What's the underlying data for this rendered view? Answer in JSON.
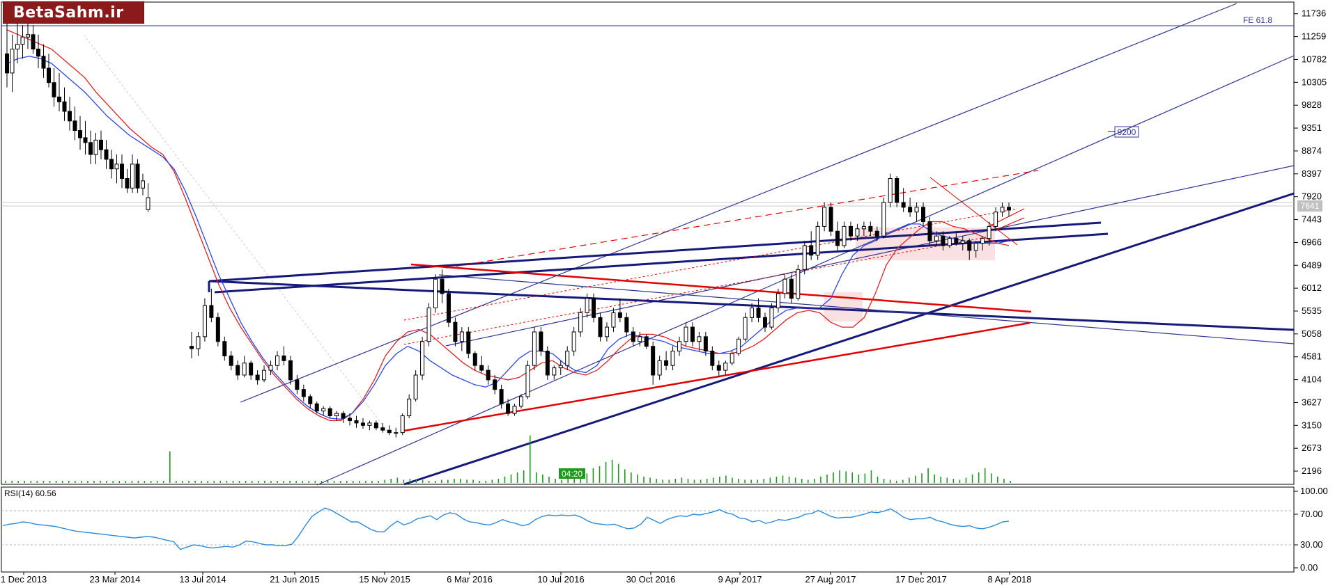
{
  "logo": {
    "text": "BetaSahm.ir"
  },
  "main_panel": {
    "fe_label": "FE 61.8",
    "target_label": "9200",
    "time_label": "04:20",
    "price_tag": "7641",
    "price_ticks": [
      "11736",
      "11259",
      "10782",
      "10305",
      "9828",
      "9351",
      "8874",
      "8397",
      "7920",
      "7443",
      "6966",
      "6489",
      "6012",
      "5535",
      "5058",
      "4581",
      "4104",
      "3627",
      "3150",
      "2673",
      "2196"
    ]
  },
  "rsi_panel": {
    "label": "RSI(14) 60.56",
    "ticks": [
      "100.00",
      "70.00",
      "30.00",
      "0.00"
    ]
  },
  "x_axis": {
    "labels": [
      "1 Dec 2013",
      "23 Mar 2014",
      "13 Jul 2014",
      "21 Jun 2015",
      "15 Nov 2015",
      "6 Mar 2016",
      "10 Jul 2016",
      "30 Oct 2016",
      "9 Apr 2017",
      "27 Aug 2017",
      "17 Dec 2017",
      "8 Apr 2018"
    ]
  },
  "chart_data": {
    "type": "candlestick",
    "title": "",
    "xlabel": "",
    "ylabel": "",
    "ylim": [
      1950,
      11950
    ],
    "price_last": 7641,
    "candles_ohlc": [
      [
        10900,
        11600,
        10200,
        10500
      ],
      [
        10500,
        11300,
        10100,
        11000
      ],
      [
        11000,
        11600,
        10700,
        11100
      ],
      [
        11100,
        11500,
        10800,
        11250
      ],
      [
        11250,
        11600,
        11000,
        11300
      ],
      [
        11300,
        11500,
        10900,
        11000
      ],
      [
        11000,
        11300,
        10600,
        10850
      ],
      [
        10850,
        11100,
        10400,
        10600
      ],
      [
        10600,
        10900,
        10200,
        10300
      ],
      [
        10300,
        10600,
        9800,
        10000
      ],
      [
        10000,
        10500,
        9700,
        9900
      ],
      [
        9900,
        10200,
        9500,
        9700
      ],
      [
        9700,
        10000,
        9300,
        9500
      ],
      [
        9500,
        9800,
        9100,
        9300
      ],
      [
        9300,
        9600,
        8900,
        9150
      ],
      [
        9150,
        9500,
        8800,
        9050
      ],
      [
        9050,
        9300,
        8600,
        8800
      ],
      [
        8800,
        9250,
        8600,
        9100
      ],
      [
        9100,
        9300,
        8700,
        8900
      ],
      [
        8900,
        9100,
        8500,
        8700
      ],
      [
        8700,
        8900,
        8300,
        8500
      ],
      [
        8500,
        8800,
        8200,
        8600
      ],
      [
        8600,
        8800,
        8100,
        8300
      ],
      [
        8300,
        8500,
        8000,
        8100
      ],
      [
        8100,
        8800,
        8000,
        8600
      ],
      [
        8600,
        8700,
        8000,
        8100
      ],
      [
        8100,
        8400,
        7950,
        8250
      ],
      [
        7650,
        8200,
        7600,
        7900
      ],
      [
        4800,
        5100,
        4550,
        4750
      ],
      [
        4750,
        5100,
        4600,
        5000
      ],
      [
        5000,
        5800,
        4900,
        5650
      ],
      [
        5650,
        6000,
        5300,
        5400
      ],
      [
        5400,
        5500,
        4800,
        4900
      ],
      [
        4900,
        5000,
        4500,
        4600
      ],
      [
        4600,
        4700,
        4300,
        4400
      ],
      [
        4400,
        4500,
        4100,
        4200
      ],
      [
        4200,
        4600,
        4150,
        4450
      ],
      [
        4450,
        4500,
        4100,
        4200
      ],
      [
        4200,
        4300,
        4000,
        4100
      ],
      [
        4100,
        4400,
        4050,
        4300
      ],
      [
        4300,
        4500,
        4200,
        4400
      ],
      [
        4400,
        4700,
        4300,
        4600
      ],
      [
        4600,
        4800,
        4400,
        4500
      ],
      [
        4500,
        4600,
        4000,
        4100
      ],
      [
        4100,
        4200,
        3800,
        3900
      ],
      [
        3900,
        4000,
        3650,
        3750
      ],
      [
        3750,
        3800,
        3500,
        3600
      ],
      [
        3600,
        3650,
        3400,
        3450
      ],
      [
        3450,
        3550,
        3350,
        3500
      ],
      [
        3500,
        3550,
        3300,
        3350
      ],
      [
        3350,
        3450,
        3250,
        3400
      ],
      [
        3400,
        3450,
        3200,
        3300
      ],
      [
        3300,
        3400,
        3150,
        3250
      ],
      [
        3250,
        3350,
        3100,
        3200
      ],
      [
        3200,
        3300,
        3080,
        3150
      ],
      [
        3150,
        3250,
        3050,
        3200
      ],
      [
        3200,
        3250,
        3050,
        3100
      ],
      [
        3100,
        3200,
        3000,
        3050
      ],
      [
        3050,
        3150,
        2950,
        3000
      ],
      [
        3000,
        3100,
        2900,
        3000
      ],
      [
        3000,
        3400,
        2950,
        3350
      ],
      [
        3350,
        3800,
        3300,
        3700
      ],
      [
        3700,
        4300,
        3650,
        4200
      ],
      [
        4200,
        5000,
        4100,
        4900
      ],
      [
        4900,
        5700,
        4800,
        5600
      ],
      [
        5600,
        6300,
        5500,
        6200
      ],
      [
        6200,
        6400,
        5700,
        5900
      ],
      [
        5900,
        6000,
        5200,
        5300
      ],
      [
        5300,
        5400,
        4800,
        4900
      ],
      [
        4900,
        5200,
        4700,
        5100
      ],
      [
        5100,
        5200,
        4550,
        4650
      ],
      [
        4650,
        4700,
        4300,
        4400
      ],
      [
        4400,
        4600,
        4250,
        4300
      ],
      [
        4300,
        4400,
        4000,
        4100
      ],
      [
        4100,
        4200,
        3800,
        3900
      ],
      [
        3900,
        4000,
        3500,
        3600
      ],
      [
        3600,
        3700,
        3350,
        3400
      ],
      [
        3400,
        3600,
        3350,
        3550
      ],
      [
        3550,
        3800,
        3500,
        3750
      ],
      [
        3750,
        4500,
        3700,
        4400
      ],
      [
        4400,
        5200,
        4300,
        5100
      ],
      [
        5100,
        5200,
        4600,
        4700
      ],
      [
        4700,
        4800,
        4100,
        4200
      ],
      [
        4200,
        4400,
        4100,
        4350
      ],
      [
        4350,
        4500,
        4200,
        4400
      ],
      [
        4400,
        4800,
        4300,
        4700
      ],
      [
        4700,
        5200,
        4600,
        5100
      ],
      [
        5100,
        5600,
        5000,
        5500
      ],
      [
        5500,
        5900,
        5400,
        5800
      ],
      [
        5800,
        5900,
        5300,
        5400
      ],
      [
        5400,
        5500,
        4900,
        5000
      ],
      [
        5000,
        5300,
        4900,
        5200
      ],
      [
        5200,
        5600,
        5100,
        5500
      ],
      [
        5500,
        5800,
        5300,
        5400
      ],
      [
        5400,
        5500,
        5000,
        5100
      ],
      [
        5100,
        5200,
        4800,
        4900
      ],
      [
        4900,
        5100,
        4800,
        5000
      ],
      [
        5000,
        5050,
        4750,
        4800
      ],
      [
        4800,
        4900,
        4000,
        4200
      ],
      [
        4200,
        4600,
        4100,
        4500
      ],
      [
        4500,
        4700,
        4300,
        4400
      ],
      [
        4400,
        4800,
        4300,
        4700
      ],
      [
        4700,
        5000,
        4600,
        4900
      ],
      [
        4900,
        5300,
        4800,
        5200
      ],
      [
        5200,
        5300,
        4800,
        4900
      ],
      [
        4900,
        5100,
        4700,
        5000
      ],
      [
        5000,
        5100,
        4600,
        4700
      ],
      [
        4700,
        4800,
        4300,
        4400
      ],
      [
        4400,
        4500,
        4150,
        4300
      ],
      [
        4300,
        4500,
        4200,
        4450
      ],
      [
        4450,
        4700,
        4400,
        4650
      ],
      [
        4650,
        5000,
        4600,
        4950
      ],
      [
        4950,
        5500,
        4900,
        5400
      ],
      [
        5400,
        5700,
        5300,
        5600
      ],
      [
        5600,
        5800,
        5300,
        5400
      ],
      [
        5400,
        5500,
        5100,
        5200
      ],
      [
        5200,
        5700,
        5150,
        5600
      ],
      [
        5600,
        6000,
        5500,
        5900
      ],
      [
        5900,
        6300,
        5800,
        6200
      ],
      [
        6200,
        6300,
        5700,
        5800
      ],
      [
        5800,
        6500,
        5750,
        6400
      ],
      [
        6400,
        7000,
        6300,
        6900
      ],
      [
        6900,
        7200,
        6600,
        6700
      ],
      [
        6700,
        7400,
        6600,
        7300
      ],
      [
        7300,
        7800,
        7200,
        7700
      ],
      [
        7700,
        7800,
        7100,
        7200
      ],
      [
        7200,
        7400,
        6800,
        6900
      ],
      [
        6900,
        7400,
        6850,
        7300
      ],
      [
        7300,
        7400,
        7000,
        7100
      ],
      [
        7100,
        7350,
        7000,
        7250
      ],
      [
        7250,
        7400,
        7100,
        7300
      ],
      [
        7300,
        7400,
        7100,
        7200
      ],
      [
        7200,
        7300,
        7000,
        7100
      ],
      [
        7100,
        7900,
        7050,
        7800
      ],
      [
        7800,
        8400,
        7700,
        8300
      ],
      [
        8300,
        8350,
        7700,
        7800
      ],
      [
        7800,
        8100,
        7600,
        7700
      ],
      [
        7700,
        7900,
        7500,
        7600
      ],
      [
        7600,
        7800,
        7400,
        7700
      ],
      [
        7700,
        7800,
        7300,
        7400
      ],
      [
        7400,
        7500,
        6900,
        7000
      ],
      [
        7000,
        7200,
        6900,
        7100
      ],
      [
        7100,
        7200,
        6800,
        6900
      ],
      [
        6900,
        7100,
        6850,
        7050
      ],
      [
        7050,
        7200,
        6900,
        6950
      ],
      [
        6950,
        7100,
        6800,
        7000
      ],
      [
        7000,
        7050,
        6600,
        6800
      ],
      [
        6800,
        7000,
        6650,
        6950
      ],
      [
        6950,
        7100,
        6800,
        7050
      ],
      [
        7050,
        7400,
        6900,
        7300
      ],
      [
        7300,
        7700,
        7200,
        7600
      ],
      [
        7600,
        7800,
        7500,
        7700
      ],
      [
        7700,
        7800,
        7500,
        7641
      ]
    ],
    "ma_red_values": [
      11400,
      11300,
      11200,
      11100,
      11000,
      10800,
      10600,
      10400,
      10100,
      9850,
      9600,
      9350,
      9150,
      8950,
      8800,
      8450,
      7900,
      7300,
      6700,
      6100,
      5600,
      5200,
      4850,
      4500,
      4200,
      3950,
      3700,
      3500,
      3350,
      3250,
      3250,
      3400,
      3700,
      4100,
      4600,
      4900,
      5100,
      5150,
      5050,
      4850,
      4650,
      4450,
      4300,
      4200,
      4150,
      4100,
      4150,
      4300,
      4450,
      4500,
      4350,
      4250,
      4200,
      4300,
      4500,
      4750,
      4950,
      5050,
      5050,
      5000,
      4900,
      4800,
      4750,
      4700,
      4650,
      4650,
      4700,
      4800,
      4950,
      5150,
      5350,
      5500,
      5550,
      5500,
      5300,
      5200,
      5200,
      5400,
      5900,
      6500,
      6850,
      7050,
      7250,
      7400,
      7400,
      7300,
      7250,
      7150,
      7050,
      6950,
      6900
    ],
    "ma_blue_values": [
      10700,
      10800,
      10850,
      10800,
      10700,
      10500,
      10300,
      10100,
      9850,
      9600,
      9400,
      9200,
      9050,
      8900,
      8750,
      8500,
      8050,
      7500,
      6900,
      6300,
      5800,
      5300,
      4900,
      4550,
      4250,
      4000,
      3750,
      3550,
      3400,
      3300,
      3280,
      3400,
      3650,
      4000,
      4400,
      4650,
      4800,
      4700,
      4500,
      4350,
      4200,
      4100,
      4000,
      3950,
      4050,
      4300,
      4550,
      4700,
      4700,
      4650,
      4450,
      4300,
      4250,
      4400,
      4750,
      4950,
      5050,
      5000,
      4950,
      4900,
      4800,
      4750,
      4700,
      4650,
      4650,
      4700,
      4800,
      5000,
      5200,
      5400,
      5550,
      5600,
      5600,
      5600,
      5800,
      6300,
      6700,
      6900,
      7000,
      7150,
      7250,
      7350,
      7350,
      7200,
      7100,
      7050,
      7000,
      6950,
      6950,
      6950,
      7000
    ],
    "volume_values": [
      2,
      2,
      2,
      2,
      2,
      2,
      2,
      2,
      2,
      2,
      2,
      2,
      2,
      2,
      2,
      2,
      2,
      2,
      2,
      2,
      2,
      2,
      2,
      2,
      2,
      2,
      30,
      2,
      2,
      2,
      2,
      2,
      2,
      2,
      2,
      2,
      2,
      2,
      2,
      2,
      2,
      2,
      2,
      2,
      2,
      2,
      2,
      2,
      2,
      2,
      2,
      2,
      2,
      2,
      2,
      2,
      2,
      2,
      2,
      2,
      3,
      4,
      5,
      3,
      4,
      3,
      3,
      2,
      2,
      3,
      3,
      4,
      4,
      3,
      3,
      2,
      2,
      3,
      4,
      6,
      8,
      10,
      12,
      45,
      10,
      8,
      6,
      4,
      3,
      4,
      5,
      7,
      9,
      14,
      16,
      20,
      22,
      18,
      13,
      10,
      8,
      6,
      5,
      4,
      3,
      3,
      4,
      5,
      4,
      3,
      3,
      4,
      5,
      6,
      7,
      5,
      4,
      3,
      3,
      3,
      4,
      5,
      6,
      7,
      6,
      5,
      4,
      3,
      4,
      6,
      8,
      10,
      12,
      11,
      10,
      8,
      9,
      12,
      6,
      4,
      3,
      2,
      3,
      5,
      7,
      9,
      14,
      8,
      6,
      5,
      4,
      3,
      5,
      8,
      10,
      14,
      9,
      6,
      4,
      2
    ],
    "rsi_values": [
      55,
      57,
      58,
      60,
      59,
      57,
      56,
      55,
      54,
      52,
      50,
      48,
      47,
      46,
      45,
      44,
      43,
      42,
      41,
      40,
      39,
      40,
      41,
      40,
      38,
      36,
      34,
      24,
      27,
      30,
      29,
      27,
      26,
      27,
      28,
      27,
      30,
      35,
      34,
      32,
      30,
      30,
      29,
      29,
      31,
      42,
      55,
      67,
      73,
      78,
      75,
      70,
      65,
      60,
      60,
      55,
      50,
      47,
      47,
      55,
      61,
      56,
      59,
      64,
      66,
      68,
      63,
      69,
      72,
      70,
      64,
      60,
      59,
      57,
      56,
      59,
      63,
      60,
      58,
      55,
      57,
      63,
      67,
      69,
      68,
      69,
      68,
      69,
      66,
      61,
      58,
      57,
      56,
      57,
      54,
      51,
      52,
      57,
      66,
      62,
      58,
      63,
      66,
      68,
      67,
      70,
      69,
      71,
      73,
      76,
      72,
      70,
      65,
      64,
      60,
      62,
      58,
      60,
      63,
      62,
      64,
      66,
      70,
      71,
      75,
      71,
      67,
      65,
      66,
      66,
      68,
      70,
      73,
      72,
      74,
      77,
      72,
      66,
      63,
      64,
      64,
      66,
      62,
      60,
      57,
      55,
      54,
      55,
      52,
      51,
      53,
      56,
      60,
      61
    ]
  }
}
